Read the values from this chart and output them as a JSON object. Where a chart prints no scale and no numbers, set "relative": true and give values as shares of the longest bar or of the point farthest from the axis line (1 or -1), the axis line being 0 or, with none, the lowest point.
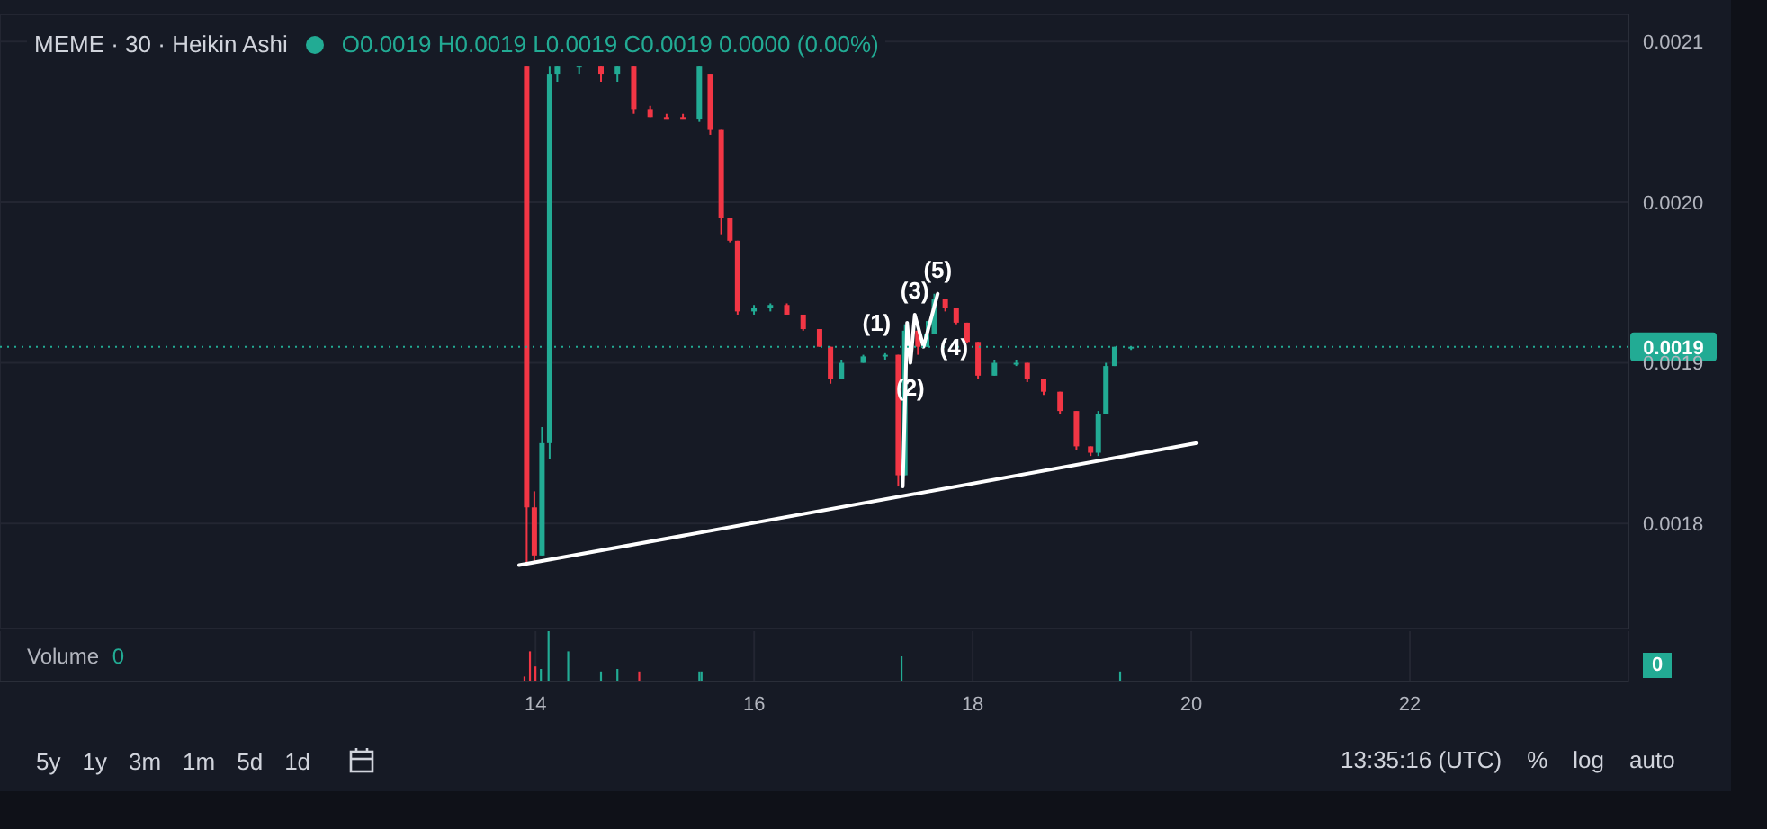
{
  "chart_data": [
    {
      "type": "candlestick",
      "title": "MEME · 30 · Heikin Ashi",
      "subtitle": "O0.0019 H0.0019 L0.0019 C0.0019 0.0000 (0.00%)",
      "x": [
        13.92,
        13.99,
        14.06,
        14.13,
        14.2,
        14.4,
        14.6,
        14.75,
        14.9,
        15.05,
        15.2,
        15.35,
        15.5,
        15.6,
        15.7,
        15.78,
        15.85,
        16.0,
        16.15,
        16.3,
        16.45,
        16.6,
        16.7,
        16.8,
        17.0,
        17.2,
        17.32,
        17.38,
        17.5,
        17.58,
        17.65,
        17.75,
        17.85,
        17.95,
        18.05,
        18.2,
        18.4,
        18.5,
        18.65,
        18.8,
        18.95,
        19.08,
        19.15,
        19.22,
        19.3,
        19.45
      ],
      "ohlc": [
        [
          0.002085,
          0.002085,
          0.001775,
          0.00181
        ],
        [
          0.00181,
          0.00182,
          0.001775,
          0.00178
        ],
        [
          0.00178,
          0.00186,
          0.00178,
          0.00185
        ],
        [
          0.00185,
          0.002085,
          0.00184,
          0.00208
        ],
        [
          0.00208,
          0.002085,
          0.002075,
          0.002085
        ],
        [
          0.002085,
          0.002085,
          0.00208,
          0.002085
        ],
        [
          0.002085,
          0.002085,
          0.002075,
          0.00208
        ],
        [
          0.00208,
          0.002085,
          0.002075,
          0.002085
        ],
        [
          0.002085,
          0.002085,
          0.002055,
          0.002058
        ],
        [
          0.002058,
          0.00206,
          0.002053,
          0.002053
        ],
        [
          0.002053,
          0.002055,
          0.002052,
          0.002053
        ],
        [
          0.002053,
          0.002055,
          0.002052,
          0.002052
        ],
        [
          0.002052,
          0.002085,
          0.00205,
          0.002085
        ],
        [
          0.00208,
          0.00208,
          0.002042,
          0.002045
        ],
        [
          0.002045,
          0.002045,
          0.00198,
          0.00199
        ],
        [
          0.00199,
          0.00199,
          0.001975,
          0.001976
        ],
        [
          0.001976,
          0.001976,
          0.00193,
          0.001932
        ],
        [
          0.001932,
          0.001936,
          0.00193,
          0.001934
        ],
        [
          0.001934,
          0.001937,
          0.001932,
          0.001936
        ],
        [
          0.001936,
          0.001937,
          0.00193,
          0.00193
        ],
        [
          0.00193,
          0.00193,
          0.00192,
          0.001921
        ],
        [
          0.001921,
          0.001921,
          0.00191,
          0.00191
        ],
        [
          0.00191,
          0.00191,
          0.001887,
          0.00189
        ],
        [
          0.00189,
          0.001902,
          0.00189,
          0.0019
        ],
        [
          0.0019,
          0.001905,
          0.0019,
          0.001904
        ],
        [
          0.001904,
          0.001906,
          0.001902,
          0.001905
        ],
        [
          0.001905,
          0.001905,
          0.001823,
          0.00183
        ],
        [
          0.00183,
          0.001924,
          0.00183,
          0.00192
        ],
        [
          0.00192,
          0.00192,
          0.001905,
          0.00191
        ],
        [
          0.00191,
          0.001926,
          0.00191,
          0.001918
        ],
        [
          0.001918,
          0.001943,
          0.001918,
          0.00194
        ],
        [
          0.00194,
          0.00194,
          0.001932,
          0.001934
        ],
        [
          0.001934,
          0.001934,
          0.001924,
          0.001925
        ],
        [
          0.001925,
          0.001925,
          0.001912,
          0.001913
        ],
        [
          0.001913,
          0.001913,
          0.00189,
          0.001892
        ],
        [
          0.001892,
          0.001902,
          0.001892,
          0.0019
        ],
        [
          0.0019,
          0.001902,
          0.001898,
          0.0019
        ],
        [
          0.0019,
          0.0019,
          0.001888,
          0.00189
        ],
        [
          0.00189,
          0.00189,
          0.00188,
          0.001882
        ],
        [
          0.001882,
          0.001882,
          0.001868,
          0.00187
        ],
        [
          0.00187,
          0.00187,
          0.001846,
          0.001848
        ],
        [
          0.001848,
          0.001848,
          0.001842,
          0.001844
        ],
        [
          0.001844,
          0.00187,
          0.001842,
          0.001868
        ],
        [
          0.001868,
          0.0019,
          0.001868,
          0.001898
        ],
        [
          0.001898,
          0.00191,
          0.001898,
          0.00191
        ],
        [
          0.00191,
          0.00191,
          0.001908,
          0.00191
        ]
      ],
      "colors": [
        "#f23645",
        "#f23645",
        "#22ab94",
        "#22ab94",
        "#22ab94",
        "#22ab94",
        "#f23645",
        "#22ab94",
        "#f23645",
        "#f23645",
        "#f23645",
        "#f23645",
        "#22ab94",
        "#f23645",
        "#f23645",
        "#f23645",
        "#f23645",
        "#22ab94",
        "#22ab94",
        "#f23645",
        "#f23645",
        "#f23645",
        "#f23645",
        "#22ab94",
        "#22ab94",
        "#22ab94",
        "#f23645",
        "#22ab94",
        "#f23645",
        "#22ab94",
        "#22ab94",
        "#f23645",
        "#f23645",
        "#f23645",
        "#f23645",
        "#22ab94",
        "#22ab94",
        "#f23645",
        "#f23645",
        "#f23645",
        "#f23645",
        "#f23645",
        "#22ab94",
        "#22ab94",
        "#22ab94",
        "#22ab94"
      ],
      "series": [
        {
          "type": "line",
          "color": "#ffffff",
          "x": [
            13.85,
            20.05
          ],
          "values": [
            0.001774,
            0.00185
          ]
        },
        {
          "type": "line",
          "color": "#ffffff",
          "x": [
            17.36,
            17.4,
            17.43,
            17.47,
            17.55,
            17.68
          ],
          "values": [
            0.001823,
            0.001925,
            0.0019,
            0.00193,
            0.00191,
            0.001943
          ]
        }
      ],
      "annotations": [
        {
          "text": "(1)",
          "x": 17.4,
          "y": 0.001925
        },
        {
          "text": "(2)",
          "x": 17.43,
          "y": 0.0019
        },
        {
          "text": "(3)",
          "x": 17.47,
          "y": 0.00193
        },
        {
          "text": "(4)",
          "x": 17.55,
          "y": 0.00191
        },
        {
          "text": "(5)",
          "x": 17.68,
          "y": 0.001943
        }
      ],
      "ref_lines": [
        {
          "axis": "y",
          "value": 0.00191,
          "label": "0.0019",
          "color": "#22ab94",
          "line_style": "dotted"
        }
      ],
      "xlim": [
        9.1,
        24
      ],
      "xticks": [
        14,
        16,
        18,
        20,
        22
      ],
      "ylim": [
        0.001734,
        0.002117
      ],
      "yticks": [
        0.0018,
        0.0019,
        {
          "value": 0.002,
          "label": "0.0020"
        },
        0.0021
      ],
      "grid": true,
      "legend": false,
      "marker": "none",
      "tick_labels": "y"
    },
    {
      "type": "bar",
      "title": "Volume",
      "relative": true,
      "x": [
        13.9,
        13.95,
        14.0,
        14.05,
        14.12,
        14.3,
        14.6,
        14.75,
        14.95,
        15.5,
        15.52,
        17.35,
        19.35
      ],
      "values": [
        0.1,
        0.6,
        0.3,
        0.25,
        1.0,
        0.6,
        0.2,
        0.25,
        0.2,
        0.2,
        0.2,
        0.5,
        0.2
      ],
      "colors": [
        "#f23645",
        "#f23645",
        "#f23645",
        "#22ab94",
        "#22ab94",
        "#22ab94",
        "#22ab94",
        "#22ab94",
        "#f23645",
        "#22ab94",
        "#22ab94",
        "#22ab94",
        "#22ab94"
      ],
      "annotations": [
        "0",
        "0",
        "5y",
        "1y",
        "3m",
        "1m",
        "5d",
        "1d",
        "13:35:16 (UTC)",
        "%",
        "log",
        "auto"
      ],
      "xlim": [
        9.1,
        24
      ],
      "xticks": [
        14,
        16,
        18,
        20,
        22
      ],
      "grid": true,
      "legend": false,
      "tick_labels": "x"
    }
  ]
}
